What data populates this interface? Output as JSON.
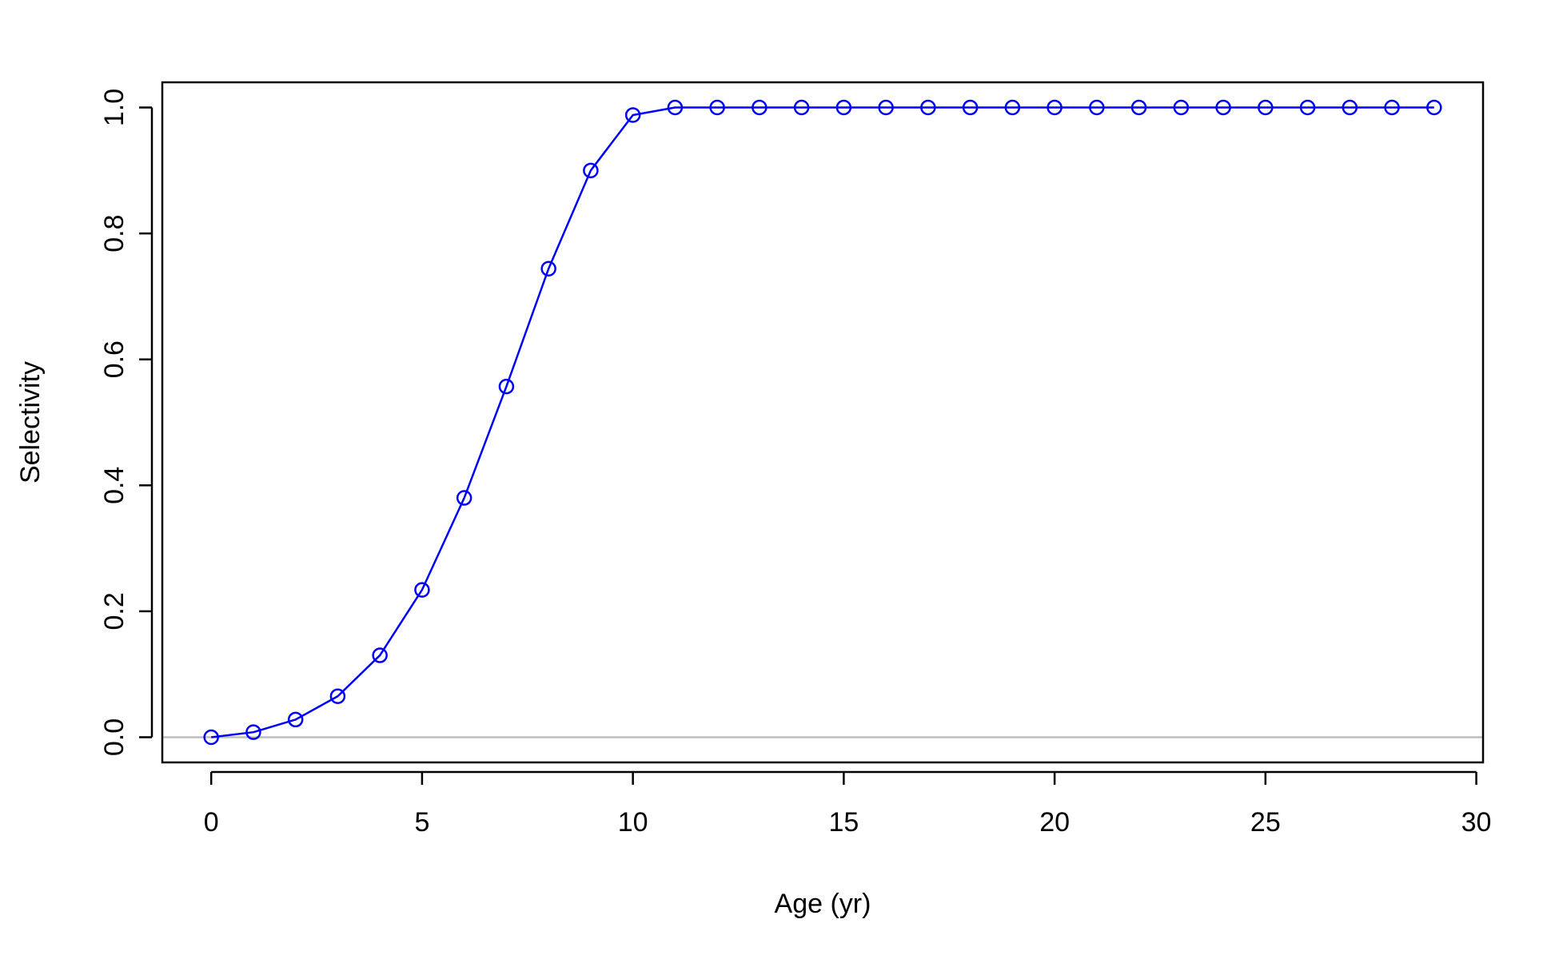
{
  "chart_data": {
    "type": "line",
    "xlabel": "Age (yr)",
    "ylabel": "Selectivity",
    "xlim": [
      -1.16,
      30.16
    ],
    "ylim": [
      -0.04,
      1.04
    ],
    "xticks": [
      0,
      5,
      10,
      15,
      20,
      25,
      30
    ],
    "xtick_labels": [
      "0",
      "5",
      "10",
      "15",
      "20",
      "25",
      "30"
    ],
    "yticks": [
      0.0,
      0.2,
      0.4,
      0.6,
      0.8,
      1.0
    ],
    "ytick_labels": [
      "0.0",
      "0.2",
      "0.4",
      "0.6",
      "0.8",
      "1.0"
    ],
    "grid": false,
    "reference_line": {
      "y": 0,
      "color": "#bebebe"
    },
    "series": [
      {
        "color": "#0000ff",
        "marker": "open-circle",
        "x": [
          0,
          1,
          2,
          3,
          4,
          5,
          6,
          7,
          8,
          9,
          10,
          11,
          12,
          13,
          14,
          15,
          16,
          17,
          18,
          19,
          20,
          21,
          22,
          23,
          24,
          25,
          26,
          27,
          28,
          29
        ],
        "y": [
          0.0,
          0.008,
          0.028,
          0.065,
          0.13,
          0.234,
          0.38,
          0.557,
          0.744,
          0.9,
          0.988,
          1.0,
          1.0,
          1.0,
          1.0,
          1.0,
          1.0,
          1.0,
          1.0,
          1.0,
          1.0,
          1.0,
          1.0,
          1.0,
          1.0,
          1.0,
          1.0,
          1.0,
          1.0,
          1.0
        ]
      }
    ]
  }
}
